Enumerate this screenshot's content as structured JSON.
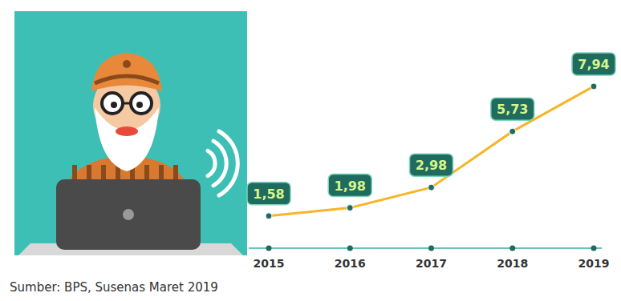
{
  "chart_data": {
    "type": "line",
    "categories": [
      "2015",
      "2016",
      "2017",
      "2018",
      "2019"
    ],
    "values": [
      1.58,
      1.98,
      2.98,
      5.73,
      7.94
    ],
    "value_labels": [
      "1,58",
      "1,98",
      "2,98",
      "5,73",
      "7,94"
    ],
    "color": "#f5b62a",
    "ylim": [
      0,
      11
    ],
    "tick_labels": "x",
    "data_labels": true,
    "marker": "circle",
    "grid": false
  },
  "source": "Sumber: BPS, Susenas Maret 2019"
}
